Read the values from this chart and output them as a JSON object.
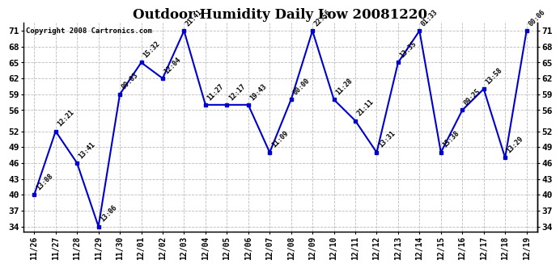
{
  "title": "Outdoor Humidity Daily Low 20081220",
  "copyright": "Copyright 2008 Cartronics.com",
  "line_color": "#0000cc",
  "bg_color": "#ffffff",
  "grid_color": "#bbbbbb",
  "dates": [
    "11/26",
    "11/27",
    "11/28",
    "11/29",
    "11/30",
    "12/01",
    "12/02",
    "12/03",
    "12/04",
    "12/05",
    "12/06",
    "12/07",
    "12/08",
    "12/09",
    "12/10",
    "12/11",
    "12/12",
    "12/13",
    "12/14",
    "12/15",
    "12/16",
    "12/17",
    "12/18",
    "12/19"
  ],
  "values": [
    40,
    52,
    46,
    34,
    59,
    65,
    62,
    71,
    57,
    57,
    57,
    48,
    58,
    71,
    58,
    54,
    48,
    65,
    71,
    48,
    56,
    60,
    47,
    71
  ],
  "labels": [
    "13:08",
    "12:21",
    "13:41",
    "13:06",
    "09:03",
    "15:32",
    "12:04",
    "21:41",
    "11:27",
    "12:17",
    "19:43",
    "11:09",
    "00:00",
    "22:56",
    "11:28",
    "21:11",
    "13:31",
    "13:35",
    "01:33",
    "15:38",
    "09:25",
    "13:58",
    "13:29",
    "00:06"
  ],
  "yticks": [
    34,
    37,
    40,
    43,
    46,
    49,
    52,
    56,
    59,
    62,
    65,
    68,
    71
  ],
  "ylim_low": 33,
  "ylim_high": 72.5
}
